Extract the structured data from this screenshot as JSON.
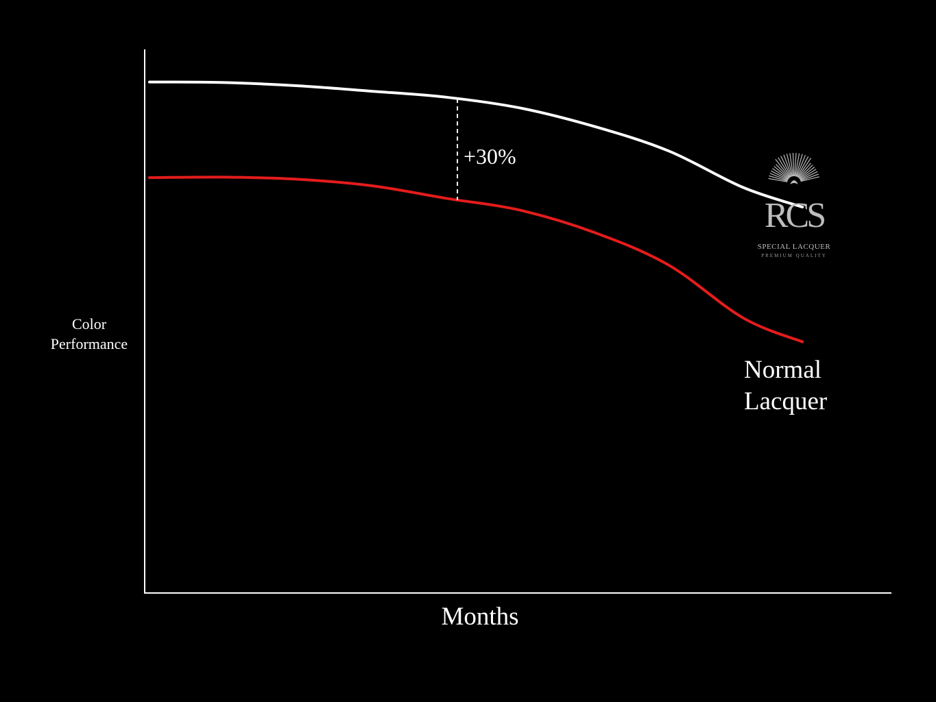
{
  "chart_data": {
    "type": "line",
    "title": "",
    "xlabel": "Months",
    "ylabel_lines": [
      "Color",
      "Performance"
    ],
    "x_ticks": false,
    "y_ticks": false,
    "grid": false,
    "xlim": [
      0,
      100
    ],
    "ylim": [
      0,
      100
    ],
    "x": [
      0,
      10,
      20,
      30,
      40,
      50,
      60,
      70,
      80,
      88
    ],
    "series": [
      {
        "name": "",
        "color": "#ffffff",
        "values": [
          94.0,
          93.9,
          93.3,
          92.3,
          91.2,
          89.2,
          85.8,
          81.3,
          74.6,
          71.0
        ]
      },
      {
        "name": "Normal Lacquer",
        "color": "#e41c1c",
        "values": [
          76.4,
          76.5,
          76.1,
          74.9,
          72.6,
          70.4,
          66.3,
          60.3,
          50.6,
          46.2
        ]
      }
    ],
    "annotations": [
      {
        "text": "+30%",
        "x": 41.5,
        "style": "dashed-gap"
      }
    ],
    "series_label": [
      "Normal",
      "Lacquer"
    ],
    "logo": {
      "mark": "RCS",
      "line1": "SPECIAL LACQUER",
      "line2": "PREMIUM QUALITY",
      "icon": "sunburst-icon"
    },
    "colors": {
      "background": "#000000",
      "axis": "#ffffff",
      "premium_series": "#ffffff",
      "normal_series": "#e41c1c",
      "logo": "#bdbdbd"
    }
  }
}
